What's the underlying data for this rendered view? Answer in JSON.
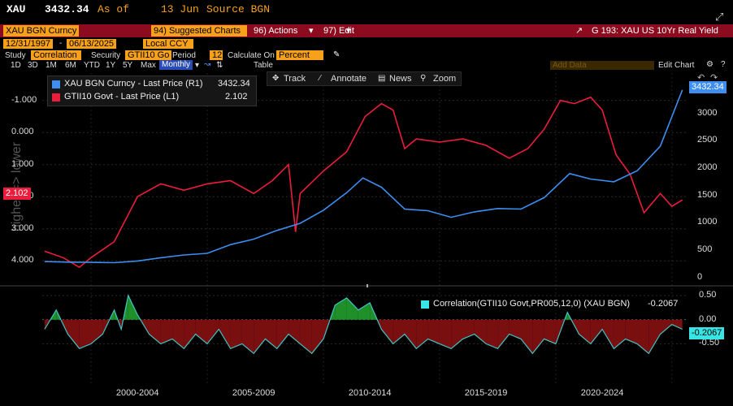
{
  "header": {
    "ticker": "XAU",
    "price": "3432.34",
    "as_of_label": "As of",
    "as_of_date": "13 Jun",
    "source": "Source BGN"
  },
  "toolbar": {
    "security_name": "XAU BGN Curncy",
    "suggested_charts": "94) Suggested Charts",
    "actions": "96) Actions",
    "edit": "97) Edit",
    "chart_title": "G 193: XAU US 10Yr Real Yield"
  },
  "row2": {
    "start_date": "12/31/1997",
    "end_date": "06/13/2025",
    "currency": "Local CCY"
  },
  "row3": {
    "study_label": "Study",
    "study_value": "Correlation",
    "security_label": "Security",
    "security_value": "GTII10 Go",
    "period_label": "Period",
    "period_value": "12",
    "calc_label": "Calculate On",
    "calc_value": "Percent"
  },
  "row4": {
    "periods": [
      "1D",
      "3D",
      "1M",
      "6M",
      "YTD",
      "1Y",
      "5Y",
      "Max"
    ],
    "frequency": "Monthly",
    "table": "Table",
    "add_data": "Add Data",
    "edit_chart": "Edit Chart"
  },
  "chart_tools": {
    "track": "Track",
    "annotate": "Annotate",
    "news": "News",
    "zoom": "Zoom"
  },
  "legend": {
    "xau": "XAU BGN Curncy - Last Price (R1)",
    "xau_value": "3432.34",
    "gtii": "GTII10 Govt - Last Price (L1)",
    "gtii_value": "2.102",
    "corr": "Correlation(GTII10 Govt,PR005,12,0) (XAU BGN)",
    "corr_value": "-0.2067"
  },
  "left_axis_title": "higher => lower",
  "colors": {
    "xau": "#3d8ef0",
    "gtii": "#ec1c3c",
    "corr_line": "#40c4c4",
    "corr_pos": "#1f8f2a",
    "corr_neg": "#7a0f10",
    "bar": "#8c0b1e",
    "accent": "#f7a11a"
  },
  "chart_data": [
    {
      "type": "line",
      "x_labels": [
        "2000-2004",
        "2005-2009",
        "2010-2014",
        "2015-2019",
        "2020-2024"
      ],
      "left_axis": {
        "inverted": true,
        "ticks": [
          "-1.000",
          "0.000",
          "1.000",
          "2.000",
          "3.000",
          "4.000"
        ],
        "range": [
          -1.7,
          4.6
        ],
        "current_label": "2.102"
      },
      "right_axis": {
        "ticks": [
          "3000",
          "2500",
          "2000",
          "1500",
          "1000",
          "500",
          "0"
        ],
        "range": [
          -50,
          3650
        ],
        "current_label": "3432.34"
      },
      "series": [
        {
          "name": "XAU BGN Curncy - Last Price (R1)",
          "axis": "right",
          "x": [
            1998.0,
            1999.0,
            2000.0,
            2001.0,
            2002.0,
            2003.0,
            2004.0,
            2005.0,
            2006.0,
            2007.0,
            2008.0,
            2009.0,
            2010.0,
            2011.0,
            2011.7,
            2012.5,
            2013.5,
            2014.5,
            2015.5,
            2016.5,
            2017.5,
            2018.5,
            2019.5,
            2020.6,
            2021.5,
            2022.5,
            2023.5,
            2024.5,
            2025.45
          ],
          "values": [
            290,
            280,
            275,
            270,
            300,
            360,
            410,
            440,
            600,
            700,
            860,
            990,
            1230,
            1550,
            1820,
            1650,
            1250,
            1220,
            1100,
            1200,
            1260,
            1250,
            1460,
            1900,
            1800,
            1750,
            1950,
            2400,
            3430
          ]
        },
        {
          "name": "GTII10 Govt - Last Price (L1)",
          "axis": "left",
          "x": [
            1998.0,
            1998.8,
            1999.5,
            2000.0,
            2001.0,
            2002.0,
            2003.0,
            2004.0,
            2005.0,
            2006.0,
            2007.0,
            2007.8,
            2008.5,
            2008.8,
            2009.0,
            2010.0,
            2011.0,
            2011.8,
            2012.5,
            2013.0,
            2013.5,
            2014.0,
            2015.0,
            2016.0,
            2017.0,
            2018.0,
            2018.8,
            2019.5,
            2020.2,
            2020.8,
            2021.5,
            2022.0,
            2022.6,
            2023.2,
            2023.8,
            2024.5,
            2025.0,
            2025.45
          ],
          "values": [
            3.7,
            3.9,
            4.2,
            3.9,
            3.4,
            2.0,
            1.6,
            1.8,
            1.6,
            1.5,
            1.9,
            1.5,
            1.0,
            3.1,
            1.9,
            1.2,
            0.6,
            -0.5,
            -0.9,
            -0.7,
            0.5,
            0.2,
            0.3,
            0.2,
            0.4,
            0.8,
            0.5,
            -0.1,
            -1.0,
            -0.9,
            -1.1,
            -0.7,
            0.7,
            1.3,
            2.5,
            1.9,
            2.3,
            2.1
          ]
        }
      ]
    },
    {
      "type": "area",
      "y_axis": {
        "ticks": [
          "0.50",
          "0.00",
          "-0.50"
        ],
        "range": [
          -1.15,
          0.6
        ],
        "current_label": "-0.2067"
      },
      "series": [
        {
          "name": "Correlation(GTII10 Govt,PR005,12,0) (XAU BGN)",
          "x": [
            1998.0,
            1998.5,
            1999.0,
            1999.5,
            2000.0,
            2000.5,
            2001.0,
            2001.3,
            2001.6,
            2002.0,
            2002.5,
            2003.0,
            2003.5,
            2004.0,
            2004.5,
            2005.0,
            2005.5,
            2006.0,
            2006.5,
            2007.0,
            2007.5,
            2008.0,
            2008.5,
            2009.0,
            2009.5,
            2010.0,
            2010.5,
            2011.0,
            2011.5,
            2012.0,
            2012.5,
            2013.0,
            2013.5,
            2014.0,
            2014.5,
            2015.0,
            2015.5,
            2016.0,
            2016.5,
            2017.0,
            2017.5,
            2018.0,
            2018.5,
            2019.0,
            2019.5,
            2020.0,
            2020.5,
            2021.0,
            2021.5,
            2022.0,
            2022.5,
            2023.0,
            2023.5,
            2024.0,
            2024.5,
            2025.0,
            2025.45
          ],
          "values": [
            -0.2,
            0.2,
            -0.3,
            -0.6,
            -0.5,
            -0.3,
            0.2,
            -0.2,
            0.5,
            0.1,
            -0.3,
            -0.5,
            -0.4,
            -0.6,
            -0.3,
            -0.5,
            -0.2,
            -0.6,
            -0.5,
            -0.7,
            -0.4,
            -0.6,
            -0.3,
            -0.5,
            -0.7,
            -0.4,
            0.3,
            0.45,
            0.2,
            0.35,
            -0.2,
            -0.5,
            -0.3,
            -0.6,
            -0.4,
            -0.5,
            -0.6,
            -0.4,
            -0.3,
            -0.5,
            -0.6,
            -0.3,
            -0.4,
            -0.7,
            -0.4,
            -0.5,
            0.15,
            -0.3,
            -0.5,
            -0.2,
            -0.6,
            -0.4,
            -0.5,
            -0.7,
            -0.3,
            -0.1,
            -0.2
          ]
        }
      ]
    }
  ]
}
